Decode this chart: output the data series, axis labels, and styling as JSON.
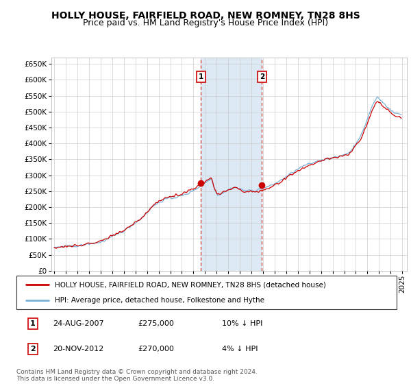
{
  "title": "HOLLY HOUSE, FAIRFIELD ROAD, NEW ROMNEY, TN28 8HS",
  "subtitle": "Price paid vs. HM Land Registry's House Price Index (HPI)",
  "ylim": [
    0,
    670000
  ],
  "yticks": [
    0,
    50000,
    100000,
    150000,
    200000,
    250000,
    300000,
    350000,
    400000,
    450000,
    500000,
    550000,
    600000,
    650000
  ],
  "xlim_start": 1994.75,
  "xlim_end": 2025.4,
  "hpi_color": "#7ab0d8",
  "price_color": "#cc0000",
  "highlight_color": "#dce9f5",
  "transaction1_date": 2007.64,
  "transaction1_price": 275000,
  "transaction1_label": "1",
  "transaction2_date": 2012.9,
  "transaction2_price": 270000,
  "transaction2_label": "2",
  "legend_line1": "HOLLY HOUSE, FAIRFIELD ROAD, NEW ROMNEY, TN28 8HS (detached house)",
  "legend_line2": "HPI: Average price, detached house, Folkestone and Hythe",
  "table_row1": [
    "1",
    "24-AUG-2007",
    "£275,000",
    "10% ↓ HPI"
  ],
  "table_row2": [
    "2",
    "20-NOV-2012",
    "£270,000",
    "4% ↓ HPI"
  ],
  "footer": "Contains HM Land Registry data © Crown copyright and database right 2024.\nThis data is licensed under the Open Government Licence v3.0.",
  "background_color": "#ffffff",
  "grid_color": "#cccccc",
  "title_fontsize": 10,
  "subtitle_fontsize": 9,
  "tick_fontsize": 7.5
}
